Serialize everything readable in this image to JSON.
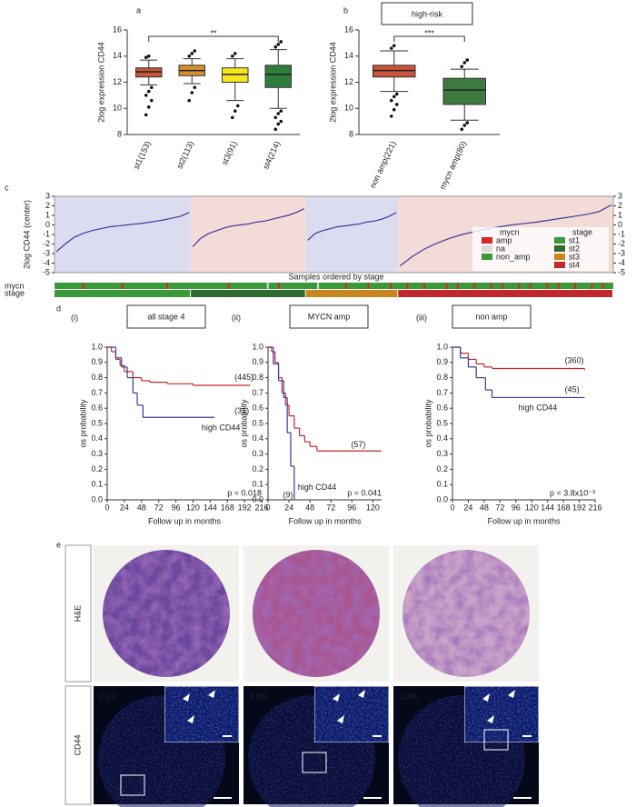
{
  "labels": [
    "a",
    "b",
    "c",
    "d",
    "e"
  ],
  "micrographs": {
    "rows": [
      "H&E",
      "CD44"
    ],
    "percentages": [
      "2.5%",
      "4.6%",
      "3.3%"
    ]
  },
  "chart_data": [
    {
      "type": "box",
      "ylabel": "2log expression CD44",
      "annotation": "**",
      "categories": [
        "st1(153)",
        "st2(113)",
        "st3(91)",
        "st4(214)"
      ],
      "colors": [
        "#c8553a",
        "#d4922a",
        "#f5e71c",
        "#2e7d3a"
      ],
      "boxes": [
        {
          "whislo": 11.8,
          "q1": 12.4,
          "median": 12.8,
          "q3": 13.1,
          "whishi": 13.7,
          "outliers": [
            9.5,
            10.1,
            10.6,
            11.0,
            11.3,
            11.6,
            13.9,
            14.0
          ]
        },
        {
          "whislo": 11.9,
          "q1": 12.5,
          "median": 12.9,
          "q3": 13.3,
          "whishi": 13.8,
          "outliers": [
            10.6,
            11.2,
            11.6,
            14.0,
            14.2,
            14.4
          ]
        },
        {
          "whislo": 10.6,
          "q1": 12.0,
          "median": 12.6,
          "q3": 13.1,
          "whishi": 13.8,
          "outliers": [
            9.3,
            9.8,
            10.2,
            14.0,
            14.2
          ]
        },
        {
          "whislo": 10.0,
          "q1": 11.6,
          "median": 12.6,
          "q3": 13.3,
          "whishi": 14.5,
          "outliers": [
            8.4,
            8.8,
            9.0,
            9.3,
            9.6,
            9.8,
            14.7,
            14.9,
            15.1
          ]
        }
      ],
      "ylim": [
        8,
        16
      ],
      "yticks": [
        8,
        10,
        12,
        14,
        16
      ]
    },
    {
      "type": "box",
      "title": "high-risk",
      "ylabel": "2log expression CD44",
      "annotation": "***",
      "categories": [
        "non amp(221)",
        "mycn amp(80)"
      ],
      "colors": [
        "#c8553a",
        "#3e7a3e"
      ],
      "boxes": [
        {
          "whislo": 11.3,
          "q1": 12.4,
          "median": 12.9,
          "q3": 13.3,
          "whishi": 14.4,
          "outliers": [
            9.4,
            9.9,
            10.3,
            10.6,
            10.9,
            11.1,
            14.6,
            14.8
          ]
        },
        {
          "whislo": 9.1,
          "q1": 10.3,
          "median": 11.4,
          "q3": 12.3,
          "whishi": 13.0,
          "outliers": [
            8.4,
            8.7,
            8.9,
            13.2,
            13.5,
            13.7
          ]
        }
      ],
      "ylim": [
        8,
        16
      ],
      "yticks": [
        8,
        10,
        12,
        14,
        16
      ]
    },
    {
      "type": "rank",
      "ylabel": "2log CD44 (center)",
      "xlabel": "Samples ordered by stage",
      "ylim": [
        -5,
        3
      ],
      "yticks": [
        -5,
        -4,
        -3,
        -2,
        -1,
        0,
        1,
        2,
        3
      ],
      "series": [
        {
          "color": "#3a3a9a",
          "values": [
            -2.8,
            -2.0,
            -1.3,
            -0.9,
            -0.6,
            -0.4,
            -0.2,
            -0.1,
            0,
            0.1,
            0.2,
            0.35,
            0.5,
            0.7,
            0.9,
            1.3
          ]
        },
        {
          "color": "#3a3a9a",
          "values": [
            -2.3,
            -1.4,
            -0.9,
            -0.6,
            -0.3,
            -0.1,
            0,
            0.1,
            0.3,
            0.4,
            0.6,
            0.8,
            1.0,
            1.3,
            1.7
          ]
        },
        {
          "color": "#3a3a9a",
          "values": [
            -1.6,
            -0.9,
            -0.6,
            -0.4,
            -0.2,
            -0.1,
            0,
            0.1,
            0.3,
            0.4,
            0.6,
            0.9,
            1.3
          ]
        },
        {
          "color": "#3a3a9a",
          "values": [
            -4.3,
            -3.3,
            -2.5,
            -1.9,
            -1.4,
            -1.0,
            -0.7,
            -0.4,
            -0.2,
            0,
            0.15,
            0.3,
            0.5,
            0.7,
            0.9,
            1.1,
            1.4,
            2.1
          ]
        }
      ],
      "tracks": [
        "mycn",
        "stage"
      ],
      "legend": [
        {
          "title": "mycn",
          "items": [
            {
              "label": "amp",
              "color": "#d62728"
            },
            {
              "label": "na",
              "color": "#d9d9d9"
            },
            {
              "label": "non_amp",
              "color": "#3a9a3a"
            }
          ]
        },
        {
          "title": "stage",
          "items": [
            {
              "label": "st1",
              "color": "#3a9a3a"
            },
            {
              "label": "st2",
              "color": "#2e6b2e"
            },
            {
              "label": "st3",
              "color": "#c8861e"
            },
            {
              "label": "st4",
              "color": "#c0282d"
            }
          ]
        }
      ]
    },
    {
      "type": "step",
      "panel": "(i)",
      "title": "all stage 4",
      "ylabel": "os probability",
      "xlabel": "Follow up in months",
      "annotation": "high CD44",
      "p_value": "p = 0.018",
      "xlim": [
        0,
        216
      ],
      "xticks": [
        0,
        24,
        48,
        72,
        96,
        120,
        144,
        168,
        192,
        216
      ],
      "ylim": [
        0,
        1
      ],
      "yticks": [
        {
          "value": 0,
          "label": "0.0"
        },
        0.1,
        0.2,
        0.3,
        0.4,
        0.5,
        0.6,
        0.7,
        0.8,
        0.9,
        {
          "value": 1,
          "label": "1.0"
        }
      ],
      "series": [
        {
          "name": "(445)",
          "color": "#c0282d",
          "x": [
            0,
            6,
            12,
            18,
            24,
            36,
            48,
            60,
            84,
            120,
            200
          ],
          "y": [
            1,
            0.97,
            0.92,
            0.88,
            0.84,
            0.8,
            0.78,
            0.77,
            0.76,
            0.75,
            0.75
          ]
        },
        {
          "name": "(31)",
          "color": "#3a3a9a",
          "x": [
            0,
            12,
            20,
            28,
            36,
            42,
            50,
            150
          ],
          "y": [
            1,
            0.93,
            0.87,
            0.8,
            0.7,
            0.62,
            0.54,
            0.54
          ]
        }
      ]
    },
    {
      "type": "step",
      "panel": "(ii)",
      "title": "MYCN amp",
      "ylabel": "os probability",
      "xlabel": "Follow up in months",
      "annotation": "high CD44",
      "p_value": "p = 0.041",
      "xlim": [
        0,
        130
      ],
      "xticks": [
        0,
        24,
        48,
        72,
        96,
        120
      ],
      "ylim": [
        0,
        1
      ],
      "yticks": [
        {
          "value": 0,
          "label": "0.0"
        },
        0.1,
        0.2,
        0.3,
        0.4,
        0.5,
        0.6,
        0.7,
        0.8,
        0.9,
        {
          "value": 1,
          "label": "1.0"
        }
      ],
      "series": [
        {
          "name": "(57)",
          "color": "#c0282d",
          "x": [
            0,
            4,
            8,
            12,
            16,
            20,
            24,
            30,
            36,
            42,
            48,
            56,
            130
          ],
          "y": [
            1,
            0.97,
            0.9,
            0.8,
            0.7,
            0.62,
            0.55,
            0.47,
            0.42,
            0.38,
            0.35,
            0.32,
            0.32
          ]
        },
        {
          "name": "(9)",
          "color": "#3a3a9a",
          "x": [
            0,
            6,
            12,
            18,
            22,
            26,
            30
          ],
          "y": [
            1,
            0.89,
            0.78,
            0.67,
            0.44,
            0.22,
            0
          ]
        }
      ]
    },
    {
      "type": "step",
      "panel": "(iii)",
      "title": "non amp",
      "ylabel": "os probability",
      "xlabel": "Follow up in months",
      "annotation": "high CD44",
      "p_value": "p = 3.8x10⁻³",
      "xlim": [
        0,
        216
      ],
      "xticks": [
        0,
        24,
        48,
        72,
        96,
        120,
        144,
        168,
        192,
        216
      ],
      "ylim": [
        0,
        1
      ],
      "yticks": [
        {
          "value": 0,
          "label": "0.0"
        },
        0.1,
        0.2,
        0.3,
        0.4,
        0.5,
        0.6,
        0.7,
        0.8,
        0.9,
        {
          "value": 1,
          "label": "1.0"
        }
      ],
      "series": [
        {
          "name": "(360)",
          "color": "#c0282d",
          "x": [
            0,
            12,
            24,
            36,
            48,
            60,
            200
          ],
          "y": [
            1,
            0.96,
            0.92,
            0.89,
            0.87,
            0.86,
            0.85
          ]
        },
        {
          "name": "(45)",
          "color": "#3a3a9a",
          "x": [
            0,
            12,
            24,
            36,
            50,
            60,
            200
          ],
          "y": [
            1,
            0.93,
            0.87,
            0.8,
            0.72,
            0.67,
            0.67
          ]
        }
      ]
    }
  ]
}
